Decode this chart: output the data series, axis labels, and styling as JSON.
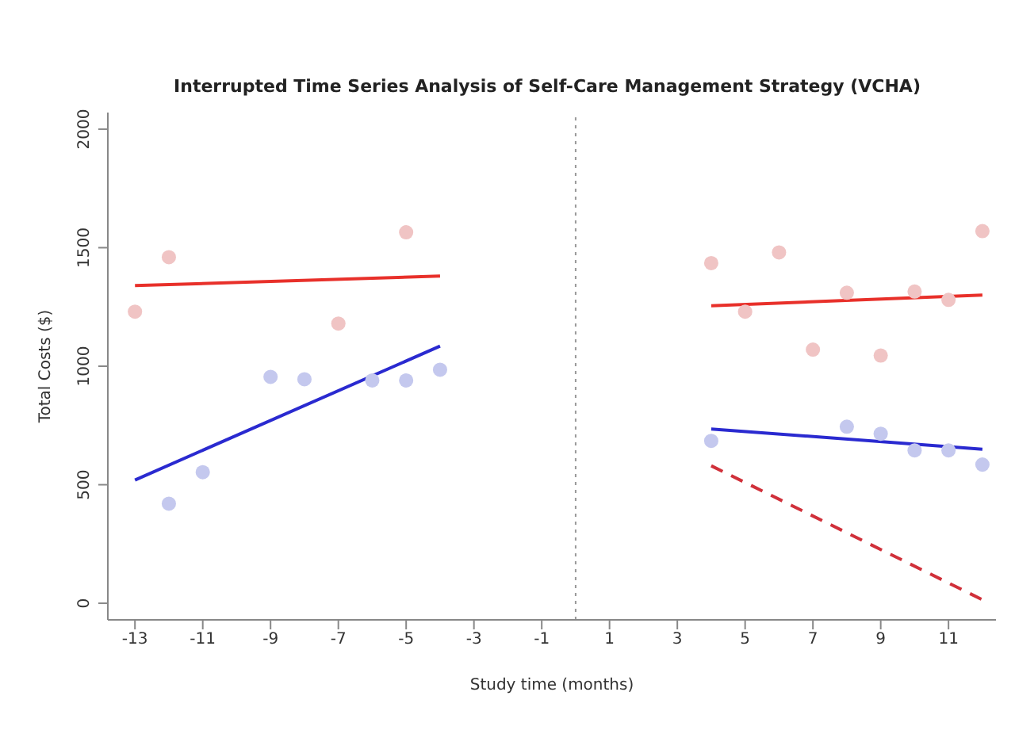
{
  "chart_data": {
    "type": "scatter",
    "title": "Interrupted Time Series Analysis of Self-Care Management Strategy (VCHA)",
    "xlabel": "Study time (months)",
    "ylabel": "Total Costs ($)",
    "xlim": [
      -13.8,
      12.4
    ],
    "xticks": [
      -13,
      -11,
      -9,
      -7,
      -5,
      -3,
      -1,
      1,
      3,
      5,
      7,
      9,
      11
    ],
    "ylim": [
      -70,
      2070
    ],
    "yticks": [
      0,
      500,
      1000,
      1500,
      2000
    ],
    "grid": false,
    "legend": false,
    "series": [
      {
        "color": "#f0c4c4",
        "marker": "circle",
        "x": [
          -13,
          -12,
          -7,
          -5,
          4,
          5,
          6,
          7,
          8,
          9,
          10,
          11,
          12
        ],
        "values": [
          1230,
          1460,
          1180,
          1565,
          1435,
          1230,
          1480,
          1070,
          1310,
          1045,
          1315,
          1280,
          1570
        ]
      },
      {
        "color": "#c4c8ee",
        "marker": "circle",
        "x": [
          -12,
          -11,
          -9,
          -8,
          -6,
          -5,
          -4,
          4,
          8,
          9,
          10,
          11,
          12
        ],
        "values": [
          420,
          553,
          955,
          945,
          940,
          940,
          985,
          685,
          745,
          715,
          645,
          645,
          585
        ]
      },
      {
        "type": "line",
        "color": "#e8302a",
        "line_style": "solid",
        "marker": "none",
        "x": [
          -13,
          -4
        ],
        "values": [
          1340,
          1380
        ]
      },
      {
        "type": "line",
        "color": "#2a2ad0",
        "line_style": "solid",
        "marker": "none",
        "x": [
          -13,
          -4
        ],
        "values": [
          520,
          1085
        ]
      },
      {
        "type": "line",
        "color": "#e8302a",
        "line_style": "solid",
        "marker": "none",
        "x": [
          4,
          12
        ],
        "values": [
          1255,
          1300
        ]
      },
      {
        "type": "line",
        "color": "#2a2ad0",
        "line_style": "solid",
        "marker": "none",
        "x": [
          4,
          12
        ],
        "values": [
          735,
          650
        ]
      },
      {
        "type": "line",
        "color": "#d0303a",
        "line_style": "dashed",
        "marker": "none",
        "x": [
          4,
          12
        ],
        "values": [
          580,
          15
        ]
      }
    ],
    "ref_lines": [
      {
        "axis": "x",
        "value": 0,
        "color": "#999999",
        "line_style": "dotted"
      }
    ]
  }
}
